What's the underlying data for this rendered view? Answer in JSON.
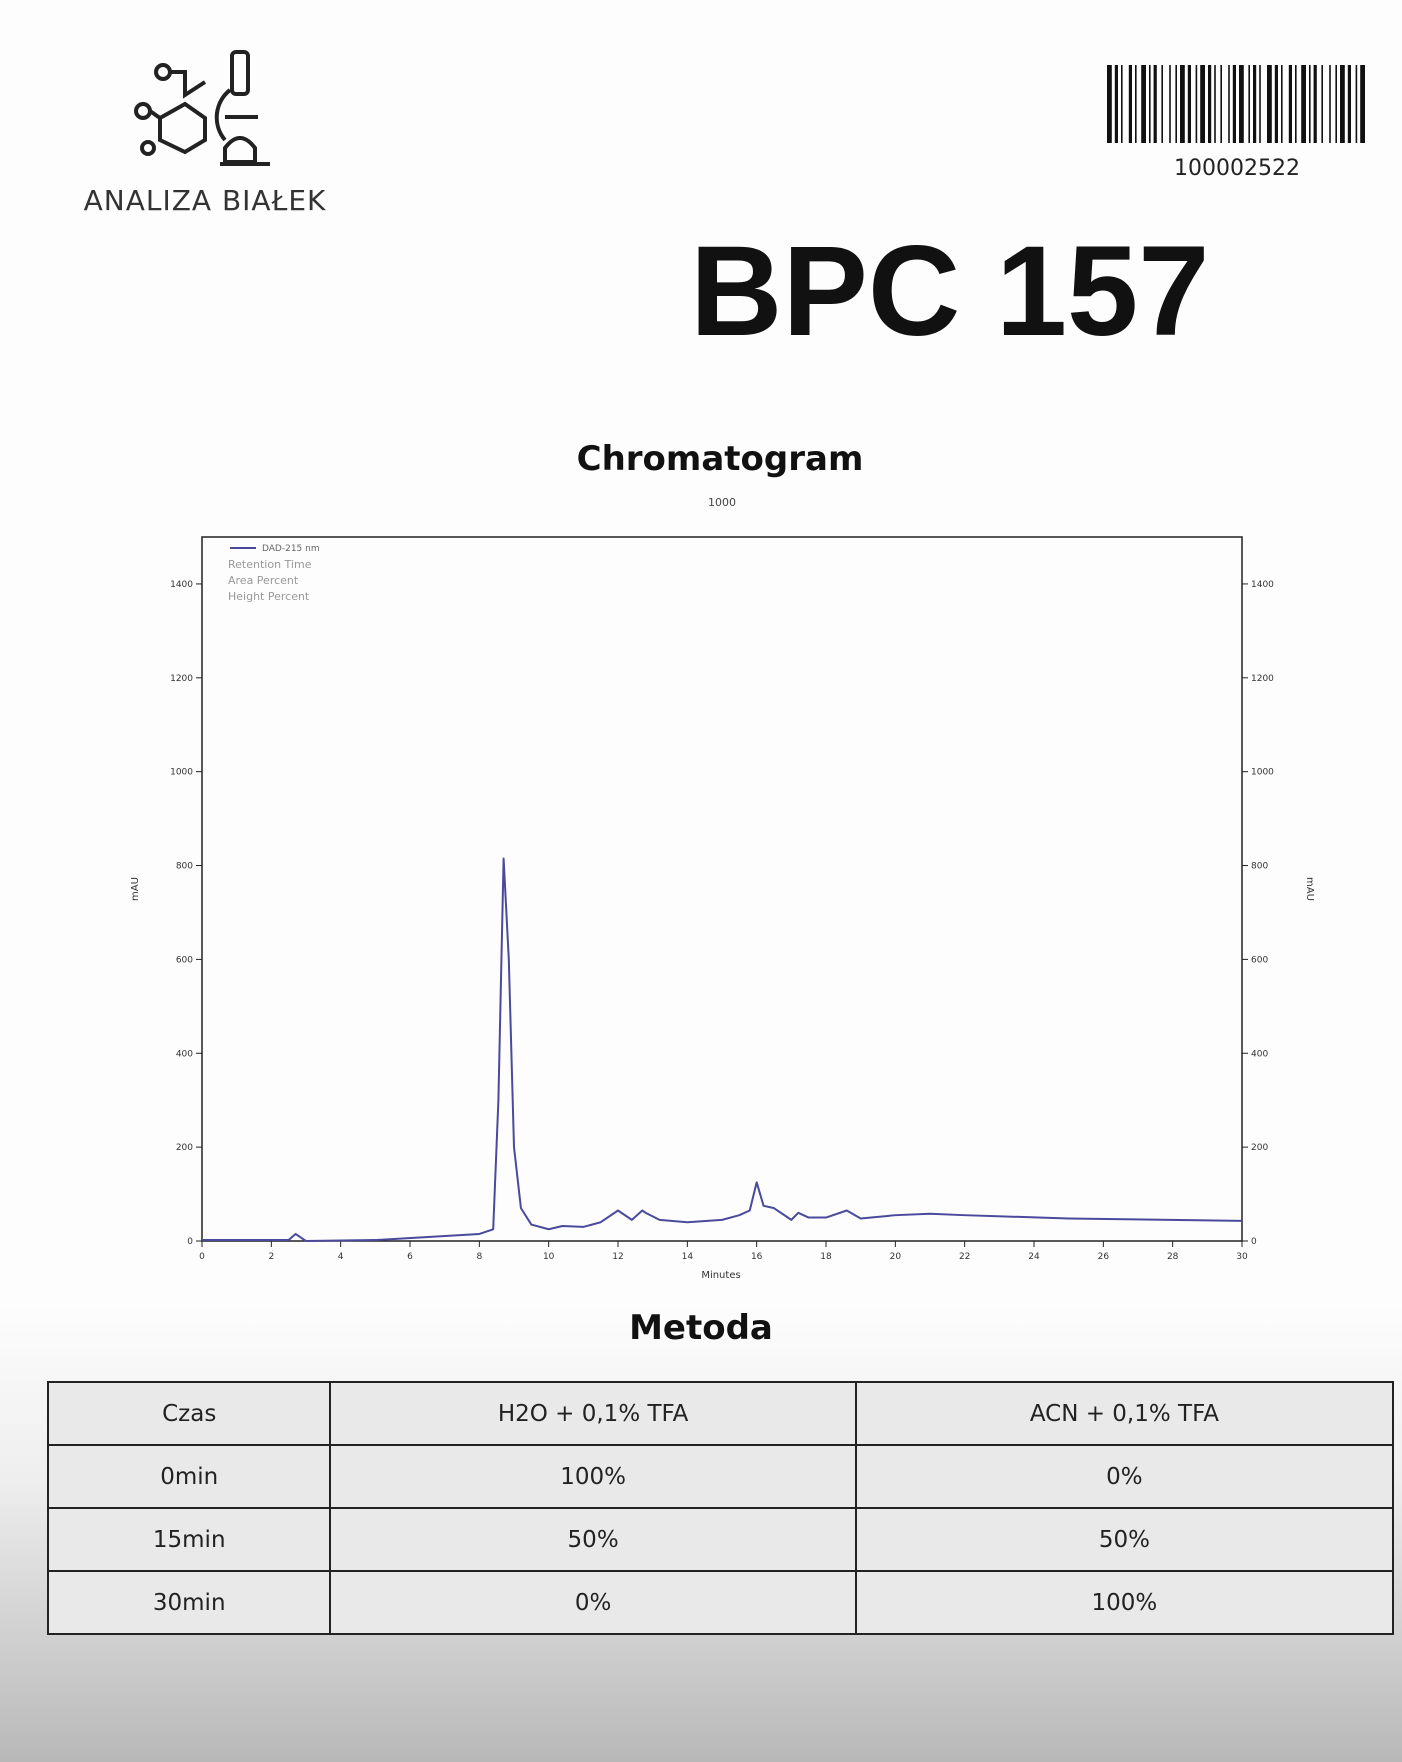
{
  "header": {
    "brand": "ANALIZA BIAŁEK",
    "barcode_number": "100002522",
    "product": "BPC 157"
  },
  "chart_data": {
    "type": "line",
    "title": "Chromatogram",
    "subtitle": "1000",
    "x_label": "Minutes",
    "y_label": "mAU",
    "y2_label": "mAU",
    "legend_notes": [
      "Retention Time",
      "Area Percent",
      "Height Percent"
    ],
    "x": [
      0,
      2.5,
      2.7,
      2.9,
      3,
      5,
      8,
      8.4,
      8.55,
      8.7,
      8.85,
      9.0,
      9.2,
      9.5,
      10,
      10.4,
      11,
      11.5,
      12,
      12.4,
      12.7,
      12.8,
      13.2,
      14,
      15,
      15.5,
      15.8,
      16.0,
      16.2,
      16.5,
      17,
      17.2,
      17.5,
      18,
      18.6,
      19,
      20,
      21,
      22,
      25,
      30
    ],
    "series": [
      {
        "name": "DAD-215 nm",
        "color": "#4a4a9c",
        "values": [
          2,
          2,
          15,
          5,
          0,
          2,
          15,
          25,
          300,
          815,
          600,
          200,
          70,
          35,
          25,
          32,
          30,
          40,
          65,
          45,
          65,
          60,
          45,
          40,
          45,
          55,
          65,
          125,
          75,
          70,
          45,
          60,
          50,
          50,
          65,
          48,
          55,
          58,
          55,
          48,
          43
        ]
      }
    ],
    "xlim": [
      0,
      30
    ],
    "xticks": [
      0,
      2,
      4,
      6,
      8,
      10,
      12,
      14,
      16,
      18,
      20,
      22,
      24,
      26,
      28,
      30
    ],
    "ylim": [
      0,
      1500
    ],
    "yticks": [
      0,
      200,
      400,
      600,
      800,
      1000,
      1200,
      1400
    ],
    "y2lim": [
      0,
      1500
    ],
    "y2ticks": [
      0,
      200,
      400,
      600,
      800,
      1000,
      1200,
      1400
    ]
  },
  "method": {
    "title": "Metoda",
    "columns": [
      "Czas",
      "H2O + 0,1% TFA",
      "ACN + 0,1% TFA"
    ],
    "rows": [
      [
        "0min",
        "100%",
        "0%"
      ],
      [
        "15min",
        "50%",
        "50%"
      ],
      [
        "30min",
        "0%",
        "100%"
      ]
    ]
  }
}
